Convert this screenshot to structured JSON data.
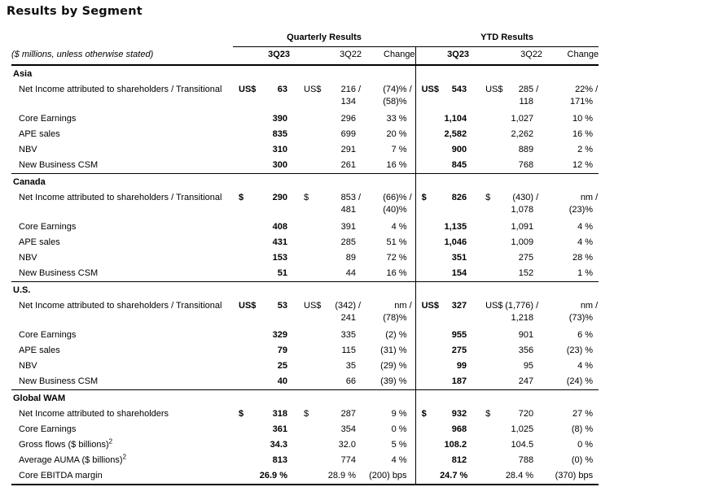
{
  "page": {
    "title": "Results by Segment"
  },
  "table": {
    "note": "($ millions, unless otherwise stated)",
    "groups": {
      "quarterly": "Quarterly Results",
      "ytd": "YTD Results"
    },
    "columns": {
      "q": [
        "3Q23",
        "3Q22",
        "Change"
      ],
      "ytd": [
        "3Q23",
        "3Q22",
        "Change"
      ]
    },
    "sections": [
      {
        "name": "Asia",
        "rows": [
          {
            "label": "Net Income attributed to shareholders / Transitional",
            "q": {
              "c1": "US$",
              "v1": "63",
              "c2": "US$",
              "v2": [
                "216 /",
                "134"
              ],
              "chg": [
                "(74)% /",
                "(58)%"
              ]
            },
            "ytd": {
              "c1": "US$",
              "v1": "543",
              "c2": "US$",
              "v2": [
                "285 /",
                "118"
              ],
              "chg": [
                "22% /",
                "171%"
              ]
            }
          },
          {
            "label": "Core Earnings",
            "q": {
              "v1": "390",
              "v2": "296",
              "chg": "33 %"
            },
            "ytd": {
              "v1": "1,104",
              "v2": "1,027",
              "chg": "10 %"
            }
          },
          {
            "label": "APE sales",
            "q": {
              "v1": "835",
              "v2": "699",
              "chg": "20 %"
            },
            "ytd": {
              "v1": "2,582",
              "v2": "2,262",
              "chg": "16 %"
            }
          },
          {
            "label": "NBV",
            "q": {
              "v1": "310",
              "v2": "291",
              "chg": "7 %"
            },
            "ytd": {
              "v1": "900",
              "v2": "889",
              "chg": "2 %"
            }
          },
          {
            "label": "New Business CSM",
            "q": {
              "v1": "300",
              "v2": "261",
              "chg": "16 %"
            },
            "ytd": {
              "v1": "845",
              "v2": "768",
              "chg": "12 %"
            }
          }
        ]
      },
      {
        "name": "Canada",
        "rows": [
          {
            "label": "Net Income attributed to shareholders / Transitional",
            "q": {
              "c1": "$",
              "v1": "290",
              "c2": "$",
              "v2": [
                "853 /",
                "481"
              ],
              "chg": [
                "(66)% /",
                "(40)%"
              ]
            },
            "ytd": {
              "c1": "$",
              "v1": "826",
              "c2": "$",
              "v2": [
                "(430) /",
                "1,078"
              ],
              "chg": [
                "nm /",
                "(23)%"
              ]
            }
          },
          {
            "label": "Core Earnings",
            "q": {
              "v1": "408",
              "v2": "391",
              "chg": "4 %"
            },
            "ytd": {
              "v1": "1,135",
              "v2": "1,091",
              "chg": "4 %"
            }
          },
          {
            "label": "APE sales",
            "q": {
              "v1": "431",
              "v2": "285",
              "chg": "51 %"
            },
            "ytd": {
              "v1": "1,046",
              "v2": "1,009",
              "chg": "4 %"
            }
          },
          {
            "label": "NBV",
            "q": {
              "v1": "153",
              "v2": "89",
              "chg": "72 %"
            },
            "ytd": {
              "v1": "351",
              "v2": "275",
              "chg": "28 %"
            }
          },
          {
            "label": "New Business CSM",
            "q": {
              "v1": "51",
              "v2": "44",
              "chg": "16 %"
            },
            "ytd": {
              "v1": "154",
              "v2": "152",
              "chg": "1 %"
            }
          }
        ]
      },
      {
        "name": "U.S.",
        "rows": [
          {
            "label": "Net Income attributed to shareholders / Transitional",
            "q": {
              "c1": "US$",
              "v1": "53",
              "c2": "US$",
              "v2": [
                "(342) /",
                "241"
              ],
              "chg": [
                "nm /",
                "(78)%"
              ]
            },
            "ytd": {
              "c1": "US$",
              "v1": "327",
              "c2": "US$",
              "v2": [
                "(1,776) /",
                "1,218"
              ],
              "chg": [
                "nm /",
                "(73)%"
              ]
            }
          },
          {
            "label": "Core Earnings",
            "q": {
              "v1": "329",
              "v2": "335",
              "chg": "(2) %"
            },
            "ytd": {
              "v1": "955",
              "v2": "901",
              "chg": "6 %"
            }
          },
          {
            "label": "APE sales",
            "q": {
              "v1": "79",
              "v2": "115",
              "chg": "(31) %"
            },
            "ytd": {
              "v1": "275",
              "v2": "356",
              "chg": "(23) %"
            }
          },
          {
            "label": "NBV",
            "q": {
              "v1": "25",
              "v2": "35",
              "chg": "(29) %"
            },
            "ytd": {
              "v1": "99",
              "v2": "95",
              "chg": "4 %"
            }
          },
          {
            "label": "New Business CSM",
            "q": {
              "v1": "40",
              "v2": "66",
              "chg": "(39) %"
            },
            "ytd": {
              "v1": "187",
              "v2": "247",
              "chg": "(24) %"
            }
          }
        ]
      },
      {
        "name": "Global WAM",
        "rows": [
          {
            "label": "Net Income attributed to shareholders",
            "q": {
              "c1": "$",
              "v1": "318",
              "c2": "$",
              "v2": "287",
              "chg": "9 %"
            },
            "ytd": {
              "c1": "$",
              "v1": "932",
              "c2": "$",
              "v2": "720",
              "chg": "27 %"
            }
          },
          {
            "label": "Core Earnings",
            "q": {
              "v1": "361",
              "v2": "354",
              "chg": "0 %"
            },
            "ytd": {
              "v1": "968",
              "v2": "1,025",
              "chg": "(8) %"
            }
          },
          {
            "label": "Gross flows ($ billions)",
            "sup": "2",
            "q": {
              "v1": "34.3",
              "v2": "32.0",
              "chg": "5 %"
            },
            "ytd": {
              "v1": "108.2",
              "v2": "104.5",
              "chg": "0 %"
            }
          },
          {
            "label": "Average AUMA ($ billions)",
            "sup": "2",
            "q": {
              "v1": "813",
              "v2": "774",
              "chg": "4 %"
            },
            "ytd": {
              "v1": "812",
              "v2": "788",
              "chg": "(0) %"
            }
          },
          {
            "label": "Core EBITDA margin",
            "q": {
              "v1": "26.9 %",
              "v2": "28.9 %",
              "chg": "(200) bps"
            },
            "ytd": {
              "v1": "24.7 %",
              "v2": "28.4 %",
              "chg": "(370) bps"
            }
          }
        ]
      }
    ]
  }
}
